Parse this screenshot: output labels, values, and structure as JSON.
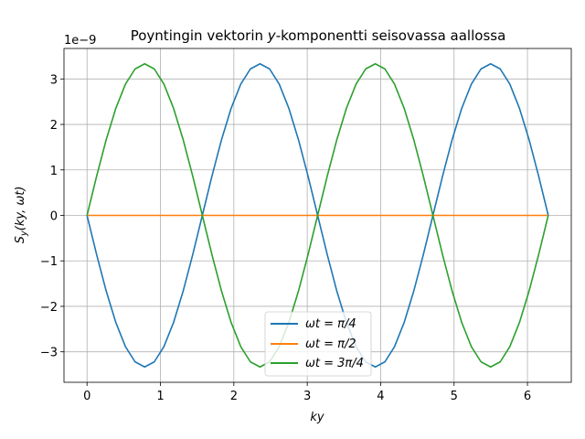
{
  "chart_data": {
    "type": "line",
    "title": "Poyntingin vektorin y-komponentti seisovassa aallossa",
    "title_parts": {
      "prefix": "Poyntingin vektorin ",
      "italic": "y",
      "suffix": "-komponentti seisovassa aallossa"
    },
    "xlabel": "ky",
    "ylabel": "S_y(ky, ωt)",
    "ylabel_parts": {
      "main": "S",
      "sub": "y",
      "rest": "(ky, ωt)"
    },
    "y_scale_label": "1e−9",
    "xlim": [
      -0.314,
      6.597
    ],
    "ylim": [
      -3.67,
      3.67
    ],
    "x_ticks": [
      0,
      1,
      2,
      3,
      4,
      5,
      6
    ],
    "x_tick_labels": [
      "0",
      "1",
      "2",
      "3",
      "4",
      "5",
      "6"
    ],
    "y_ticks": [
      -3,
      -2,
      -1,
      0,
      1,
      2,
      3
    ],
    "y_tick_labels": [
      "−3",
      "−2",
      "−1",
      "0",
      "1",
      "2",
      "3"
    ],
    "grid": true,
    "legend_position": "lower-center",
    "x": [
      0,
      0.1309,
      0.2618,
      0.3927,
      0.5236,
      0.6545,
      0.7854,
      0.9163,
      1.0472,
      1.1781,
      1.309,
      1.4399,
      1.5708,
      1.7017,
      1.8326,
      1.9635,
      2.0944,
      2.2253,
      2.3562,
      2.4871,
      2.618,
      2.7489,
      2.8798,
      3.0107,
      3.1416,
      3.2725,
      3.4034,
      3.5343,
      3.6652,
      3.7961,
      3.927,
      4.0579,
      4.1888,
      4.3197,
      4.4506,
      4.5815,
      4.7124,
      4.8433,
      4.9742,
      5.1051,
      5.236,
      5.3669,
      5.4978,
      5.6287,
      5.7596,
      5.8905,
      6.0214,
      6.1523,
      6.2832
    ],
    "series": [
      {
        "name": "ωt = π/4",
        "label_parts": {
          "lhs": "ωt",
          "rhs": "π/4"
        },
        "color": "#1f77b4",
        "values": [
          0,
          -0.863,
          -1.667,
          -2.357,
          -2.887,
          -3.22,
          -3.333,
          -3.22,
          -2.887,
          -2.357,
          -1.667,
          -0.863,
          0,
          0.863,
          1.667,
          2.357,
          2.887,
          3.22,
          3.333,
          3.22,
          2.887,
          2.357,
          1.667,
          0.863,
          0,
          -0.863,
          -1.667,
          -2.357,
          -2.887,
          -3.22,
          -3.333,
          -3.22,
          -2.887,
          -2.357,
          -1.667,
          -0.863,
          0,
          0.863,
          1.667,
          2.357,
          2.887,
          3.22,
          3.333,
          3.22,
          2.887,
          2.357,
          1.667,
          0.863,
          0
        ]
      },
      {
        "name": "ωt = π/2",
        "label_parts": {
          "lhs": "ωt",
          "rhs": "π/2"
        },
        "color": "#ff7f0e",
        "values": [
          0,
          0,
          0,
          0,
          0,
          0,
          0,
          0,
          0,
          0,
          0,
          0,
          0,
          0,
          0,
          0,
          0,
          0,
          0,
          0,
          0,
          0,
          0,
          0,
          0,
          0,
          0,
          0,
          0,
          0,
          0,
          0,
          0,
          0,
          0,
          0,
          0,
          0,
          0,
          0,
          0,
          0,
          0,
          0,
          0,
          0,
          0,
          0,
          0
        ]
      },
      {
        "name": "ωt = 3π/4",
        "label_parts": {
          "lhs": "ωt",
          "rhs": "3π/4"
        },
        "color": "#2ca02c",
        "values": [
          0,
          0.863,
          1.667,
          2.357,
          2.887,
          3.22,
          3.333,
          3.22,
          2.887,
          2.357,
          1.667,
          0.863,
          0,
          -0.863,
          -1.667,
          -2.357,
          -2.887,
          -3.22,
          -3.333,
          -3.22,
          -2.887,
          -2.357,
          -1.667,
          -0.863,
          0,
          0.863,
          1.667,
          2.357,
          2.887,
          3.22,
          3.333,
          3.22,
          2.887,
          2.357,
          1.667,
          0.863,
          0,
          -0.863,
          -1.667,
          -2.357,
          -2.887,
          -3.22,
          -3.333,
          -3.22,
          -2.887,
          -2.357,
          -1.667,
          -0.863,
          0
        ]
      }
    ]
  }
}
